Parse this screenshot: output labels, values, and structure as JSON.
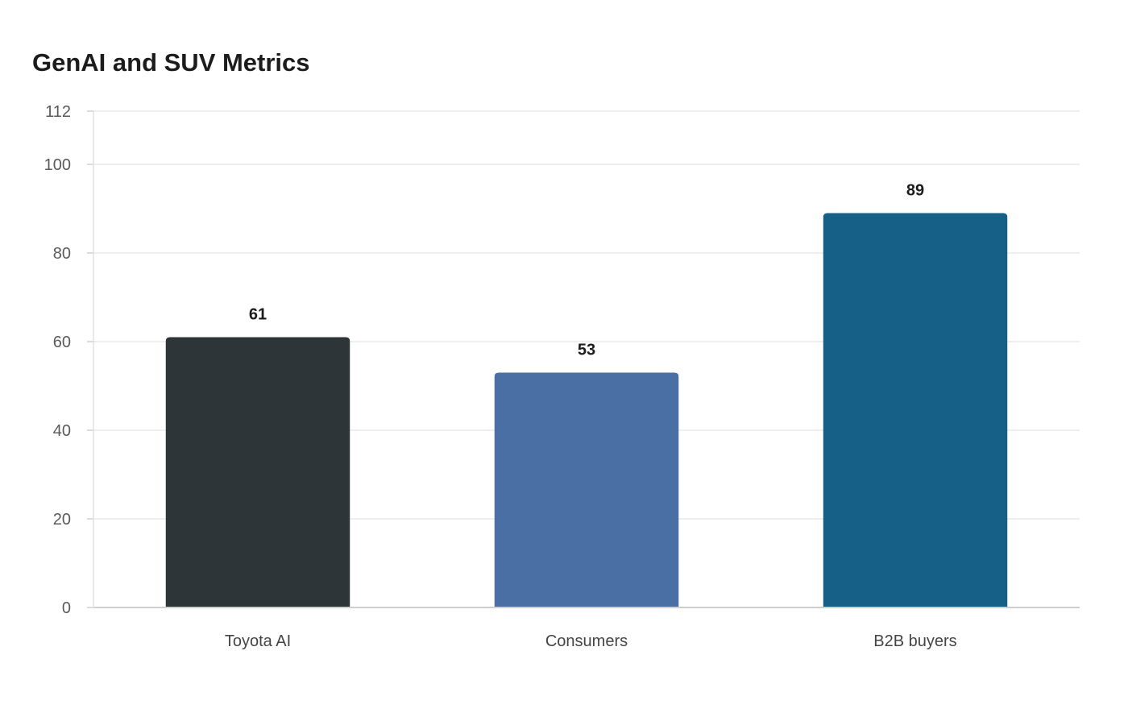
{
  "chart_data": {
    "type": "bar",
    "title": "GenAI and SUV Metrics",
    "categories": [
      "Toyota AI",
      "Consumers",
      "B2B buyers"
    ],
    "values": [
      61,
      53,
      89
    ],
    "colors": [
      "#2e3538",
      "#4a6fa5",
      "#166088"
    ],
    "yticks": [
      0,
      20,
      40,
      60,
      80,
      100,
      112
    ],
    "ylim": [
      0,
      112
    ],
    "xlabel": "",
    "ylabel": "",
    "grid": true,
    "legend": "none"
  }
}
